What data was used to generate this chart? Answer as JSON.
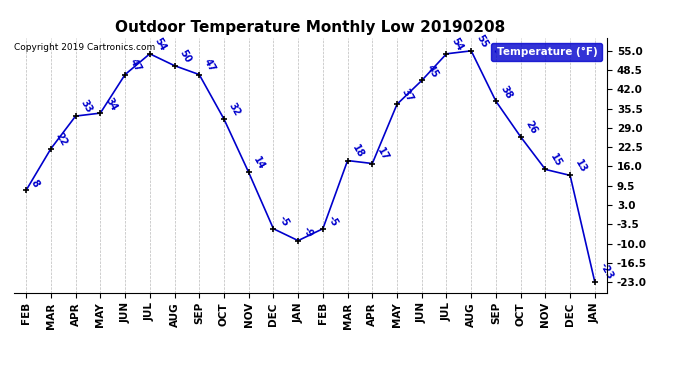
{
  "title": "Outdoor Temperature Monthly Low 20190208",
  "months": [
    "FEB",
    "MAR",
    "APR",
    "MAY",
    "JUN",
    "JUL",
    "AUG",
    "SEP",
    "OCT",
    "NOV",
    "DEC",
    "JAN",
    "FEB",
    "MAR",
    "APR",
    "MAY",
    "JUN",
    "JUL",
    "AUG",
    "SEP",
    "OCT",
    "NOV",
    "DEC",
    "JAN"
  ],
  "values": [
    8,
    22,
    33,
    34,
    47,
    54,
    50,
    47,
    32,
    14,
    -5,
    -9,
    -5,
    18,
    17,
    37,
    45,
    54,
    55,
    38,
    26,
    15,
    13,
    -23
  ],
  "line_color": "#0000cc",
  "marker_color": "#000000",
  "label_color": "#0000cc",
  "background_color": "#ffffff",
  "grid_color": "#bbbbbb",
  "title_fontsize": 11,
  "tick_fontsize": 7.5,
  "label_fontsize": 7,
  "legend_label": "Temperature (°F)",
  "copyright": "Copyright 2019 Cartronics.com",
  "yticks": [
    55.0,
    48.5,
    42.0,
    35.5,
    29.0,
    22.5,
    16.0,
    9.5,
    3.0,
    -3.5,
    -10.0,
    -16.5,
    -23.0
  ],
  "ylim_min": -26.5,
  "ylim_max": 59.5
}
